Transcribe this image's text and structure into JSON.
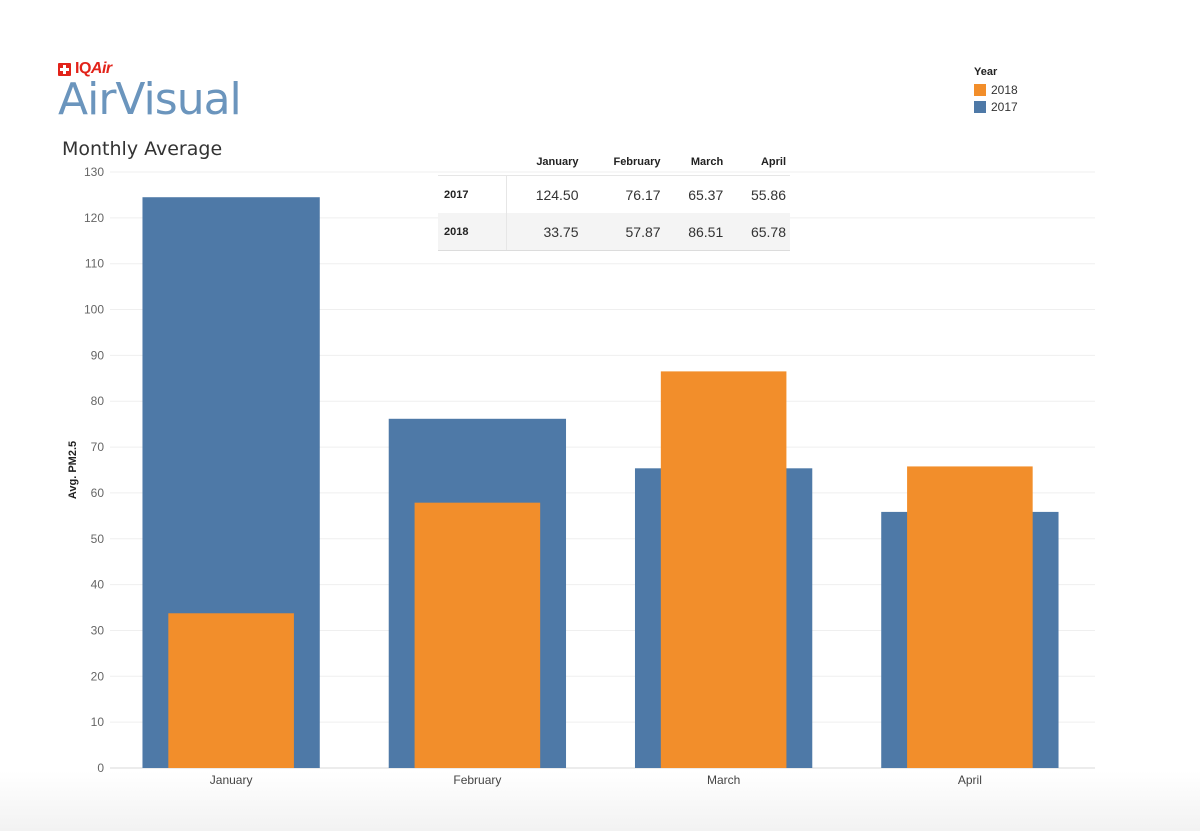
{
  "brand": {
    "company": "IQAir",
    "company_plain": "IQ",
    "company_italic": "Air",
    "product": "AirVisual"
  },
  "title": "Monthly Average",
  "legend": {
    "title": "Year",
    "items": [
      {
        "label": "2018",
        "color": "#f28e2b"
      },
      {
        "label": "2017",
        "color": "#4e79a7"
      }
    ]
  },
  "table": {
    "columns": [
      "January",
      "February",
      "March",
      "April"
    ],
    "rows": [
      {
        "label": "2017",
        "values": [
          "124.50",
          "76.17",
          "65.37",
          "55.86"
        ]
      },
      {
        "label": "2018",
        "values": [
          "33.75",
          "57.87",
          "86.51",
          "65.78"
        ]
      }
    ]
  },
  "chart_data": {
    "type": "bar",
    "title": "Monthly Average",
    "xlabel": "",
    "ylabel": "Avg. PM2.5",
    "categories": [
      "January",
      "February",
      "March",
      "April"
    ],
    "series": [
      {
        "name": "2017",
        "values": [
          124.5,
          76.17,
          65.37,
          55.86
        ],
        "color": "#4e79a7"
      },
      {
        "name": "2018",
        "values": [
          33.75,
          57.87,
          86.51,
          65.78
        ],
        "color": "#f28e2b"
      }
    ],
    "ylim": [
      0,
      130
    ],
    "yticks": [
      0,
      10,
      20,
      30,
      40,
      50,
      60,
      70,
      80,
      90,
      100,
      110,
      120,
      130
    ],
    "grid": true,
    "legend_position": "top-right",
    "overlapping_bars": true
  }
}
